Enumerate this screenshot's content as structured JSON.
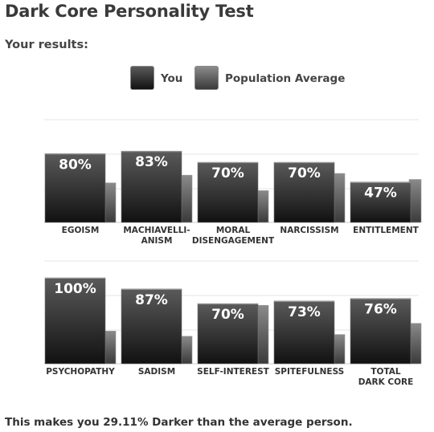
{
  "title": "Dark Core Personality Test",
  "subtitle": "Your results:",
  "footer": "This makes you 29.11% Darker than the average person.",
  "legend": {
    "you": "You",
    "population": "Population Average"
  },
  "colors": {
    "you_top": "#5a5a5a",
    "you_bottom": "#111111",
    "pop_top": "#8a8a8a",
    "pop_bottom": "#3a3a3a",
    "grid": "#e6e6e6"
  },
  "chart_data": [
    {
      "type": "bar",
      "ylim": [
        0,
        100
      ],
      "categories": [
        "EGOISM",
        "MACHIAVELLI-\nANISM",
        "MORAL\nDISENGAGEMENT",
        "NARCISSISM",
        "ENTITLEMENT"
      ],
      "series": [
        {
          "name": "You",
          "values": [
            80,
            83,
            70,
            70,
            47
          ],
          "labels": [
            "80%",
            "83%",
            "70%",
            "70%",
            "47%"
          ]
        },
        {
          "name": "Population Average",
          "values": [
            46,
            55,
            37,
            57,
            50
          ]
        }
      ]
    },
    {
      "type": "bar",
      "ylim": [
        0,
        100
      ],
      "categories": [
        "PSYCHOPATHY",
        "SADISM",
        "SELF-INTEREST",
        "SPITEFULNESS",
        "TOTAL\nDARK CORE"
      ],
      "series": [
        {
          "name": "You",
          "values": [
            100,
            87,
            70,
            73,
            76
          ],
          "labels": [
            "100%",
            "87%",
            "70%",
            "73%",
            "76%"
          ]
        },
        {
          "name": "Population Average",
          "values": [
            38,
            32,
            68,
            34,
            47
          ]
        }
      ]
    }
  ]
}
